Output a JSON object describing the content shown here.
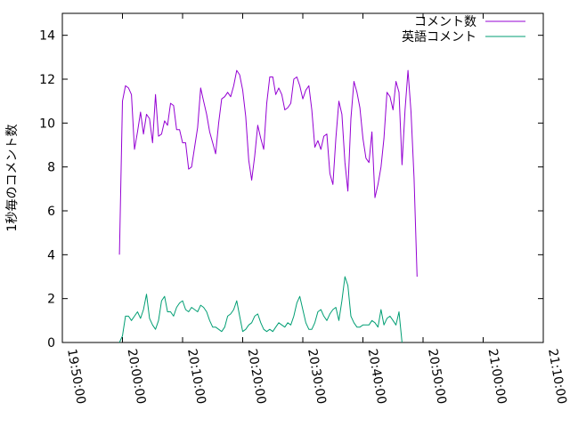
{
  "chart_data": {
    "type": "line",
    "title": "",
    "xlabel": "",
    "ylabel": "1秒毎のコメント数",
    "xlim": [
      "19:50:00",
      "21:10:00"
    ],
    "ylim": [
      0,
      15
    ],
    "x_ticks": [
      "19:50:00",
      "20:00:00",
      "20:10:00",
      "20:20:00",
      "20:30:00",
      "20:40:00",
      "20:50:00",
      "21:00:00",
      "21:10:00"
    ],
    "y_ticks": [
      0,
      2,
      4,
      6,
      8,
      10,
      12,
      14
    ],
    "grid": false,
    "legend": "top-right",
    "series": [
      {
        "name": "コメント数",
        "color": "#9400d3",
        "points": [
          [
            "19:59:30",
            4.0
          ],
          [
            "20:00:00",
            11.0
          ],
          [
            "20:00:30",
            11.7
          ],
          [
            "20:01:00",
            11.6
          ],
          [
            "20:01:30",
            11.3
          ],
          [
            "20:02:00",
            8.8
          ],
          [
            "20:02:30",
            9.6
          ],
          [
            "20:03:00",
            10.5
          ],
          [
            "20:03:30",
            9.5
          ],
          [
            "20:04:00",
            10.4
          ],
          [
            "20:04:30",
            10.2
          ],
          [
            "20:05:00",
            9.1
          ],
          [
            "20:05:30",
            11.3
          ],
          [
            "20:06:00",
            9.4
          ],
          [
            "20:06:30",
            9.5
          ],
          [
            "20:07:00",
            10.1
          ],
          [
            "20:07:30",
            9.9
          ],
          [
            "20:08:00",
            10.9
          ],
          [
            "20:08:30",
            10.8
          ],
          [
            "20:09:00",
            9.7
          ],
          [
            "20:09:30",
            9.7
          ],
          [
            "20:10:00",
            9.1
          ],
          [
            "20:10:30",
            9.1
          ],
          [
            "20:11:00",
            7.9
          ],
          [
            "20:11:30",
            8.0
          ],
          [
            "20:12:00",
            8.9
          ],
          [
            "20:12:30",
            9.8
          ],
          [
            "20:13:00",
            11.6
          ],
          [
            "20:13:30",
            11.0
          ],
          [
            "20:14:00",
            10.4
          ],
          [
            "20:14:30",
            9.6
          ],
          [
            "20:15:00",
            9.1
          ],
          [
            "20:15:30",
            8.6
          ],
          [
            "20:16:00",
            10.0
          ],
          [
            "20:16:30",
            11.1
          ],
          [
            "20:17:00",
            11.2
          ],
          [
            "20:17:30",
            11.4
          ],
          [
            "20:18:00",
            11.2
          ],
          [
            "20:18:30",
            11.7
          ],
          [
            "20:19:00",
            12.4
          ],
          [
            "20:19:30",
            12.2
          ],
          [
            "20:20:00",
            11.5
          ],
          [
            "20:20:30",
            10.3
          ],
          [
            "20:21:00",
            8.3
          ],
          [
            "20:21:30",
            7.4
          ],
          [
            "20:22:00",
            8.5
          ],
          [
            "20:22:30",
            9.9
          ],
          [
            "20:23:00",
            9.3
          ],
          [
            "20:23:30",
            8.8
          ],
          [
            "20:24:00",
            10.9
          ],
          [
            "20:24:30",
            12.1
          ],
          [
            "20:25:00",
            12.1
          ],
          [
            "20:25:30",
            11.3
          ],
          [
            "20:26:00",
            11.6
          ],
          [
            "20:26:30",
            11.3
          ],
          [
            "20:27:00",
            10.6
          ],
          [
            "20:27:30",
            10.7
          ],
          [
            "20:28:00",
            10.9
          ],
          [
            "20:28:30",
            12.0
          ],
          [
            "20:29:00",
            12.1
          ],
          [
            "20:29:30",
            11.7
          ],
          [
            "20:30:00",
            11.1
          ],
          [
            "20:30:30",
            11.5
          ],
          [
            "20:31:00",
            11.7
          ],
          [
            "20:31:30",
            10.6
          ],
          [
            "20:32:00",
            8.9
          ],
          [
            "20:32:30",
            9.2
          ],
          [
            "20:33:00",
            8.8
          ],
          [
            "20:33:30",
            9.4
          ],
          [
            "20:34:00",
            9.5
          ],
          [
            "20:34:30",
            7.7
          ],
          [
            "20:35:00",
            7.2
          ],
          [
            "20:35:30",
            9.3
          ],
          [
            "20:36:00",
            11.0
          ],
          [
            "20:36:30",
            10.4
          ],
          [
            "20:37:00",
            8.2
          ],
          [
            "20:37:30",
            6.9
          ],
          [
            "20:38:00",
            10.2
          ],
          [
            "20:38:30",
            11.9
          ],
          [
            "20:39:00",
            11.4
          ],
          [
            "20:39:30",
            10.7
          ],
          [
            "20:40:00",
            9.3
          ],
          [
            "20:40:30",
            8.4
          ],
          [
            "20:41:00",
            8.2
          ],
          [
            "20:41:30",
            9.6
          ],
          [
            "20:42:00",
            6.6
          ],
          [
            "20:42:30",
            7.2
          ],
          [
            "20:43:00",
            8.0
          ],
          [
            "20:43:30",
            9.3
          ],
          [
            "20:44:00",
            11.4
          ],
          [
            "20:44:30",
            11.2
          ],
          [
            "20:45:00",
            10.6
          ],
          [
            "20:45:30",
            11.9
          ],
          [
            "20:46:00",
            11.4
          ],
          [
            "20:46:30",
            8.1
          ],
          [
            "20:47:00",
            10.6
          ],
          [
            "20:47:30",
            12.4
          ],
          [
            "20:48:00",
            10.5
          ],
          [
            "20:48:30",
            7.5
          ],
          [
            "20:49:00",
            3.0
          ]
        ]
      },
      {
        "name": "英語コメント",
        "color": "#009e73",
        "points": [
          [
            "19:59:30",
            0.0
          ],
          [
            "20:00:00",
            0.3
          ],
          [
            "20:00:30",
            1.2
          ],
          [
            "20:01:00",
            1.2
          ],
          [
            "20:01:30",
            1.0
          ],
          [
            "20:02:00",
            1.2
          ],
          [
            "20:02:30",
            1.4
          ],
          [
            "20:03:00",
            1.1
          ],
          [
            "20:03:30",
            1.5
          ],
          [
            "20:04:00",
            2.2
          ],
          [
            "20:04:30",
            1.1
          ],
          [
            "20:05:00",
            0.8
          ],
          [
            "20:05:30",
            0.6
          ],
          [
            "20:06:00",
            1.0
          ],
          [
            "20:06:30",
            1.9
          ],
          [
            "20:07:00",
            2.1
          ],
          [
            "20:07:30",
            1.4
          ],
          [
            "20:08:00",
            1.4
          ],
          [
            "20:08:30",
            1.2
          ],
          [
            "20:09:00",
            1.6
          ],
          [
            "20:09:30",
            1.8
          ],
          [
            "20:10:00",
            1.9
          ],
          [
            "20:10:30",
            1.5
          ],
          [
            "20:11:00",
            1.4
          ],
          [
            "20:11:30",
            1.6
          ],
          [
            "20:12:00",
            1.5
          ],
          [
            "20:12:30",
            1.4
          ],
          [
            "20:13:00",
            1.7
          ],
          [
            "20:13:30",
            1.6
          ],
          [
            "20:14:00",
            1.4
          ],
          [
            "20:14:30",
            1.0
          ],
          [
            "20:15:00",
            0.7
          ],
          [
            "20:15:30",
            0.7
          ],
          [
            "20:16:00",
            0.6
          ],
          [
            "20:16:30",
            0.5
          ],
          [
            "20:17:00",
            0.7
          ],
          [
            "20:17:30",
            1.2
          ],
          [
            "20:18:00",
            1.3
          ],
          [
            "20:18:30",
            1.5
          ],
          [
            "20:19:00",
            1.9
          ],
          [
            "20:19:30",
            1.2
          ],
          [
            "20:20:00",
            0.5
          ],
          [
            "20:20:30",
            0.6
          ],
          [
            "20:21:00",
            0.8
          ],
          [
            "20:21:30",
            0.9
          ],
          [
            "20:22:00",
            1.2
          ],
          [
            "20:22:30",
            1.3
          ],
          [
            "20:23:00",
            0.9
          ],
          [
            "20:23:30",
            0.6
          ],
          [
            "20:24:00",
            0.5
          ],
          [
            "20:24:30",
            0.6
          ],
          [
            "20:25:00",
            0.5
          ],
          [
            "20:25:30",
            0.7
          ],
          [
            "20:26:00",
            0.9
          ],
          [
            "20:26:30",
            0.8
          ],
          [
            "20:27:00",
            0.7
          ],
          [
            "20:27:30",
            0.9
          ],
          [
            "20:28:00",
            0.8
          ],
          [
            "20:28:30",
            1.2
          ],
          [
            "20:29:00",
            1.8
          ],
          [
            "20:29:30",
            2.1
          ],
          [
            "20:30:00",
            1.5
          ],
          [
            "20:30:30",
            0.9
          ],
          [
            "20:31:00",
            0.6
          ],
          [
            "20:31:30",
            0.6
          ],
          [
            "20:32:00",
            0.9
          ],
          [
            "20:32:30",
            1.4
          ],
          [
            "20:33:00",
            1.5
          ],
          [
            "20:33:30",
            1.2
          ],
          [
            "20:34:00",
            1.0
          ],
          [
            "20:34:30",
            1.3
          ],
          [
            "20:35:00",
            1.5
          ],
          [
            "20:35:30",
            1.6
          ],
          [
            "20:36:00",
            1.0
          ],
          [
            "20:36:30",
            1.9
          ],
          [
            "20:37:00",
            3.0
          ],
          [
            "20:37:30",
            2.6
          ],
          [
            "20:38:00",
            1.2
          ],
          [
            "20:38:30",
            0.9
          ],
          [
            "20:39:00",
            0.7
          ],
          [
            "20:39:30",
            0.7
          ],
          [
            "20:40:00",
            0.8
          ],
          [
            "20:40:30",
            0.8
          ],
          [
            "20:41:00",
            0.8
          ],
          [
            "20:41:30",
            1.0
          ],
          [
            "20:42:00",
            0.9
          ],
          [
            "20:42:30",
            0.7
          ],
          [
            "20:43:00",
            1.5
          ],
          [
            "20:43:30",
            0.8
          ],
          [
            "20:44:00",
            1.1
          ],
          [
            "20:44:30",
            1.2
          ],
          [
            "20:45:00",
            1.0
          ],
          [
            "20:45:30",
            0.8
          ],
          [
            "20:46:00",
            1.4
          ],
          [
            "20:46:30",
            0.0
          ]
        ]
      }
    ]
  }
}
